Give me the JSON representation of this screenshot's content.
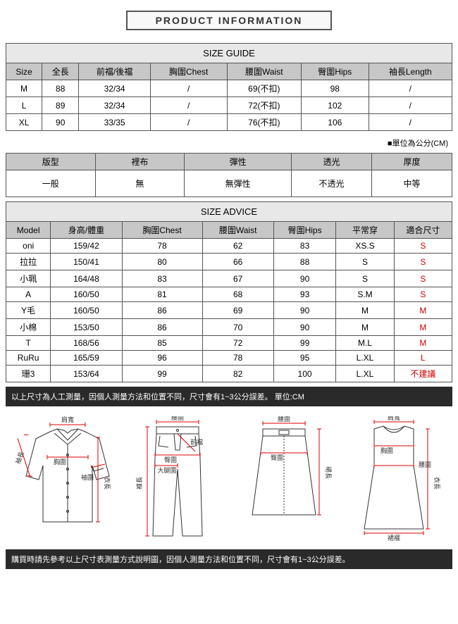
{
  "title": "PRODUCT INFORMATION",
  "sizeGuide": {
    "heading": "SIZE GUIDE",
    "columns": [
      "Size",
      "全長",
      "前襠/後襠",
      "胸圍Chest",
      "腰圍Waist",
      "臀圍Hips",
      "袖長Length"
    ],
    "rows": [
      [
        "M",
        "88",
        "32/34",
        "/",
        "69(不扣)",
        "98",
        "/"
      ],
      [
        "L",
        "89",
        "32/34",
        "/",
        "72(不扣)",
        "102",
        "/"
      ],
      [
        "XL",
        "90",
        "33/35",
        "/",
        "76(不扣)",
        "106",
        "/"
      ]
    ],
    "note": "■單位為公分(CM)"
  },
  "properties": {
    "columns": [
      "版型",
      "裡布",
      "彈性",
      "透光",
      "厚度"
    ],
    "values": [
      "一般",
      "無",
      "無彈性",
      "不透光",
      "中等"
    ]
  },
  "sizeAdvice": {
    "heading": "SIZE ADVICE",
    "columns": [
      "Model",
      "身高/體重",
      "胸圍Chest",
      "腰圍Waist",
      "臀圍Hips",
      "平常穿",
      "適合尺寸"
    ],
    "rows": [
      {
        "cells": [
          "oni",
          "159/42",
          "78",
          "62",
          "83",
          "XS.S"
        ],
        "fit": "S"
      },
      {
        "cells": [
          "拉拉",
          "150/41",
          "80",
          "66",
          "88",
          "S"
        ],
        "fit": "S"
      },
      {
        "cells": [
          "小珮",
          "164/48",
          "83",
          "67",
          "90",
          "S"
        ],
        "fit": "S"
      },
      {
        "cells": [
          "A",
          "160/50",
          "81",
          "68",
          "93",
          "S.M"
        ],
        "fit": "S"
      },
      {
        "cells": [
          "Y毛",
          "160/50",
          "86",
          "69",
          "90",
          "M"
        ],
        "fit": "M"
      },
      {
        "cells": [
          "小棉",
          "153/50",
          "86",
          "70",
          "90",
          "M"
        ],
        "fit": "M"
      },
      {
        "cells": [
          "T",
          "168/56",
          "85",
          "72",
          "99",
          "M.L"
        ],
        "fit": "M"
      },
      {
        "cells": [
          "RuRu",
          "165/59",
          "96",
          "78",
          "95",
          "L.XL"
        ],
        "fit": "L"
      },
      {
        "cells": [
          "珊3",
          "153/64",
          "99",
          "82",
          "100",
          "L.XL"
        ],
        "fit": "不建議"
      }
    ]
  },
  "note1": "以上尺寸為人工測量，因個人測量方法和位置不同，尺寸會有1~3公分誤差。 單位:CM",
  "note2": "購買時請先參考以上尺寸表測量方式說明圖，因個人測量方法和位置不同，尺寸會有1~3公分誤差。",
  "diagrams": {
    "shirt": {
      "labels": {
        "shoulder": "肩寬",
        "chest": "胸圍",
        "sleeve": "袖長",
        "sleeveOpen": "袖圍",
        "length": "衣長"
      }
    },
    "pants": {
      "labels": {
        "waist": "腰圍",
        "frontRise": "前襠",
        "hip": "臀圍",
        "thigh": "大腿圍",
        "length": "褲長"
      }
    },
    "skirt": {
      "labels": {
        "waist": "腰圍",
        "hip": "臀圍",
        "length": "裙長"
      }
    },
    "dress": {
      "labels": {
        "shoulder": "肩寬",
        "chest": "胸圍",
        "waist": "腰圍",
        "length": "衣長",
        "hem": "裙襬"
      }
    }
  },
  "styling": {
    "arrow_color": "#e00000",
    "outline_color": "#333333",
    "label_fontsize": 9
  }
}
